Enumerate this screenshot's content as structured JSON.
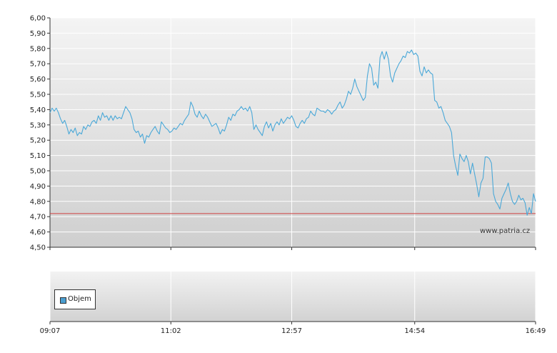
{
  "chart_data": [
    {
      "type": "line",
      "y_ticks": [
        "6,00",
        "5,90",
        "5,80",
        "5,70",
        "5,60",
        "5,50",
        "5,40",
        "5,30",
        "5,20",
        "5,10",
        "5,00",
        "4,90",
        "4,80",
        "4,70",
        "4,60",
        "4,50"
      ],
      "ylim": [
        4.5,
        6.0
      ],
      "xlim": [
        "09:07",
        "16:49"
      ],
      "grid": true,
      "reference_line": {
        "value": 4.72,
        "color": "#d04040"
      },
      "series": [
        {
          "color": "#4aa8d8",
          "x": [
            "09:07",
            "09:09",
            "09:11",
            "09:13",
            "09:15",
            "09:17",
            "09:19",
            "09:21",
            "09:23",
            "09:25",
            "09:27",
            "09:29",
            "09:31",
            "09:33",
            "09:35",
            "09:37",
            "09:39",
            "09:41",
            "09:43",
            "09:45",
            "09:47",
            "09:49",
            "09:51",
            "09:53",
            "09:55",
            "09:57",
            "09:59",
            "10:01",
            "10:03",
            "10:05",
            "10:07",
            "10:09",
            "10:11",
            "10:13",
            "10:15",
            "10:17",
            "10:19",
            "10:21",
            "10:23",
            "10:25",
            "10:27",
            "10:29",
            "10:31",
            "10:33",
            "10:35",
            "10:37",
            "10:39",
            "10:41",
            "10:43",
            "10:45",
            "10:47",
            "10:49",
            "10:51",
            "10:53",
            "10:55",
            "10:57",
            "10:59",
            "11:01",
            "11:03",
            "11:05",
            "11:07",
            "11:09",
            "11:11",
            "11:13",
            "11:15",
            "11:17",
            "11:19",
            "11:21",
            "11:23",
            "11:25",
            "11:27",
            "11:29",
            "11:31",
            "11:33",
            "11:35",
            "11:37",
            "11:39",
            "11:41",
            "11:43",
            "11:45",
            "11:47",
            "11:49",
            "11:51",
            "11:53",
            "11:55",
            "11:57",
            "11:59",
            "12:01",
            "12:03",
            "12:05",
            "12:07",
            "12:09",
            "12:11",
            "12:13",
            "12:15",
            "12:17",
            "12:19",
            "12:21",
            "12:23",
            "12:25",
            "12:27",
            "12:29",
            "12:31",
            "12:33",
            "12:35",
            "12:37",
            "12:39",
            "12:41",
            "12:43",
            "12:45",
            "12:47",
            "12:49",
            "12:51",
            "12:53",
            "12:55",
            "12:57",
            "12:59",
            "13:01",
            "13:03",
            "13:05",
            "13:07",
            "13:09",
            "13:11",
            "13:13",
            "13:15",
            "13:17",
            "13:19",
            "13:21",
            "13:23",
            "13:25",
            "13:27",
            "13:29",
            "13:31",
            "13:33",
            "13:35",
            "13:37",
            "13:39",
            "13:41",
            "13:43",
            "13:45",
            "13:47",
            "13:49",
            "13:51",
            "13:53",
            "13:55",
            "13:57",
            "13:59",
            "14:01",
            "14:03",
            "14:05",
            "14:07",
            "14:09",
            "14:11",
            "14:13",
            "14:15",
            "14:17",
            "14:19",
            "14:21",
            "14:23",
            "14:25",
            "14:27",
            "14:29",
            "14:31",
            "14:33",
            "14:35",
            "14:37",
            "14:39",
            "14:41",
            "14:43",
            "14:45",
            "14:47",
            "14:49",
            "14:51",
            "14:53",
            "14:55",
            "14:57",
            "14:59",
            "15:01",
            "15:03",
            "15:05",
            "15:07",
            "15:09",
            "15:11",
            "15:13",
            "15:15",
            "15:17",
            "15:19",
            "15:21",
            "15:23",
            "15:25",
            "15:27",
            "15:29",
            "15:31",
            "15:33",
            "15:35",
            "15:37",
            "15:39",
            "15:41",
            "15:43",
            "15:45",
            "15:47",
            "15:49",
            "15:51",
            "15:53",
            "15:55",
            "15:57",
            "15:59",
            "16:01",
            "16:03",
            "16:05",
            "16:07",
            "16:09",
            "16:11",
            "16:13",
            "16:15",
            "16:17",
            "16:19",
            "16:21",
            "16:23",
            "16:25",
            "16:27",
            "16:29",
            "16:31",
            "16:33",
            "16:35",
            "16:37",
            "16:39",
            "16:41",
            "16:43",
            "16:45",
            "16:47",
            "16:49"
          ],
          "values": [
            5.38,
            5.41,
            5.39,
            5.41,
            5.38,
            5.34,
            5.31,
            5.33,
            5.29,
            5.24,
            5.27,
            5.25,
            5.28,
            5.23,
            5.25,
            5.24,
            5.29,
            5.27,
            5.3,
            5.29,
            5.32,
            5.33,
            5.31,
            5.36,
            5.33,
            5.38,
            5.35,
            5.36,
            5.33,
            5.36,
            5.33,
            5.36,
            5.34,
            5.35,
            5.34,
            5.38,
            5.42,
            5.4,
            5.38,
            5.34,
            5.27,
            5.25,
            5.26,
            5.22,
            5.24,
            5.18,
            5.23,
            5.22,
            5.25,
            5.27,
            5.29,
            5.26,
            5.24,
            5.32,
            5.3,
            5.28,
            5.27,
            5.25,
            5.26,
            5.28,
            5.27,
            5.29,
            5.31,
            5.3,
            5.33,
            5.35,
            5.37,
            5.45,
            5.42,
            5.37,
            5.35,
            5.39,
            5.36,
            5.34,
            5.37,
            5.35,
            5.32,
            5.29,
            5.3,
            5.31,
            5.28,
            5.24,
            5.27,
            5.26,
            5.3,
            5.35,
            5.33,
            5.37,
            5.36,
            5.39,
            5.4,
            5.42,
            5.4,
            5.41,
            5.39,
            5.42,
            5.38,
            5.27,
            5.3,
            5.27,
            5.25,
            5.23,
            5.29,
            5.32,
            5.28,
            5.31,
            5.26,
            5.3,
            5.32,
            5.3,
            5.34,
            5.31,
            5.33,
            5.35,
            5.34,
            5.36,
            5.33,
            5.29,
            5.28,
            5.31,
            5.33,
            5.31,
            5.34,
            5.35,
            5.39,
            5.37,
            5.36,
            5.41,
            5.4,
            5.39,
            5.39,
            5.38,
            5.4,
            5.39,
            5.37,
            5.39,
            5.4,
            5.43,
            5.45,
            5.41,
            5.43,
            5.47,
            5.52,
            5.5,
            5.54,
            5.6,
            5.55,
            5.52,
            5.49,
            5.46,
            5.48,
            5.62,
            5.7,
            5.67,
            5.56,
            5.58,
            5.54,
            5.74,
            5.78,
            5.73,
            5.78,
            5.73,
            5.62,
            5.58,
            5.64,
            5.67,
            5.7,
            5.72,
            5.75,
            5.74,
            5.78,
            5.77,
            5.79,
            5.76,
            5.77,
            5.75,
            5.65,
            5.62,
            5.68,
            5.64,
            5.66,
            5.64,
            5.63,
            5.46,
            5.45,
            5.41,
            5.42,
            5.38,
            5.33,
            5.31,
            5.29,
            5.25,
            5.1,
            5.03,
            4.97,
            5.11,
            5.08,
            5.06,
            5.1,
            5.06,
            4.98,
            5.05,
            4.98,
            4.91,
            4.83,
            4.92,
            4.95,
            5.09,
            5.09,
            5.08,
            5.05,
            4.85,
            4.8,
            4.78,
            4.75,
            4.82,
            4.85,
            4.88,
            4.92,
            4.85,
            4.8,
            4.78,
            4.8,
            4.84,
            4.81,
            4.82,
            4.79,
            4.71,
            4.76,
            4.72,
            4.85,
            4.8
          ]
        }
      ]
    },
    {
      "type": "bar",
      "x_ticks": [
        "09:07",
        "11:02",
        "12:57",
        "14:54",
        "16:49"
      ],
      "legend": [
        "Objem"
      ],
      "legend_color": "#4a9ed0",
      "series": []
    }
  ],
  "watermark": "www.patria.cz"
}
